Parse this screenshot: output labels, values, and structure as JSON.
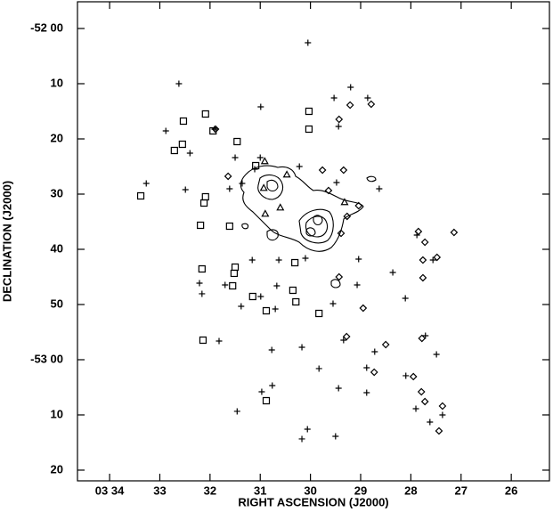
{
  "chart_data": {
    "type": "scatter",
    "xlabel": "RIGHT ASCENSION (J2000)",
    "ylabel": "DECLINATION (J2000)",
    "xlim": [
      34.64,
      25.24
    ],
    "ylim": [
      -4.84,
      81.94
    ],
    "y_inverted": true,
    "xticks": [
      {
        "value": 34,
        "label": "03 34"
      },
      33,
      32,
      31,
      30,
      29,
      28,
      27,
      26
    ],
    "yticks": [
      {
        "value": 0,
        "label": "-52 00"
      },
      10,
      20,
      30,
      40,
      50,
      {
        "value": 60,
        "label": "-53 00"
      },
      {
        "value": 70,
        "label": "10"
      },
      {
        "value": 80,
        "label": "20"
      }
    ],
    "series": [
      {
        "marker": "plus",
        "color": "#000000",
        "x": [
          30.05,
          32.62,
          30.99,
          29.53,
          29.2,
          28.86,
          29.44,
          32.88,
          32.4,
          31.91,
          31.5,
          31.0,
          31.11,
          31.36,
          31.61,
          33.27,
          32.49,
          30.22,
          29.48,
          28.63,
          31.16,
          30.63,
          30.1,
          29.04,
          28.36,
          27.56,
          28.11,
          32.21,
          31.7,
          30.99,
          30.67,
          32.16,
          31.38,
          31.82,
          30.7,
          29.55,
          29.07,
          30.17,
          29.34,
          28.72,
          28.88,
          28.1,
          30.77,
          29.83,
          30.97,
          30.76,
          29.44,
          28.88,
          27.49,
          27.71,
          27.9,
          27.62,
          27.37,
          31.46,
          30.06,
          30.17,
          29.5,
          27.88
        ],
        "values": [
          2.58,
          10.0,
          14.19,
          12.58,
          10.65,
          12.58,
          17.74,
          18.55,
          22.58,
          18.23,
          23.39,
          23.39,
          25.48,
          28.06,
          29.03,
          28.06,
          29.19,
          25.0,
          27.9,
          29.03,
          41.94,
          41.94,
          41.61,
          41.77,
          44.19,
          41.94,
          48.87,
          46.13,
          46.45,
          48.55,
          46.61,
          48.06,
          50.32,
          56.61,
          50.81,
          49.84,
          46.45,
          57.74,
          56.45,
          58.55,
          61.45,
          62.9,
          58.23,
          61.61,
          65.81,
          64.68,
          65.16,
          65.97,
          59.03,
          55.65,
          68.87,
          71.29,
          70.0,
          69.35,
          72.58,
          74.35,
          73.87,
          37.42
        ]
      },
      {
        "marker": "diamond",
        "color": "#000000",
        "x": [
          31.89,
          29.43,
          29.21,
          28.79,
          31.64,
          29.76,
          29.34,
          29.04,
          29.64,
          29.39,
          29.27,
          27.85,
          27.72,
          27.76,
          27.14,
          27.48,
          27.76,
          29.43,
          28.95,
          29.28,
          28.73,
          28.5,
          27.78,
          27.95,
          27.79,
          27.72,
          27.37,
          27.44
        ],
        "values": [
          18.23,
          16.45,
          13.87,
          13.71,
          26.77,
          25.65,
          25.65,
          32.1,
          29.35,
          37.1,
          34.03,
          36.77,
          38.71,
          41.94,
          36.94,
          41.45,
          45.16,
          45.0,
          50.65,
          55.81,
          62.26,
          57.26,
          56.13,
          63.06,
          65.81,
          67.58,
          68.39,
          72.9
        ]
      },
      {
        "marker": "square",
        "color": "#000000",
        "x": [
          33.38,
          32.71,
          32.53,
          32.09,
          31.94,
          32.55,
          30.03,
          30.03,
          31.46,
          32.09,
          32.12,
          32.19,
          32.16,
          31.09,
          31.5,
          31.52,
          31.55,
          31.15,
          30.88,
          30.35,
          30.29,
          30.31,
          29.83,
          30.88,
          32.14,
          31.61
        ],
        "values": [
          30.32,
          22.1,
          16.77,
          15.48,
          18.55,
          20.97,
          15.0,
          18.23,
          20.48,
          30.48,
          31.61,
          35.65,
          43.55,
          24.84,
          43.23,
          44.35,
          46.61,
          48.55,
          51.13,
          47.42,
          49.52,
          42.42,
          51.61,
          67.42,
          56.45,
          35.81
        ]
      },
      {
        "marker": "triangle",
        "color": "#000000",
        "x": [
          30.91,
          30.47,
          30.93,
          30.6,
          30.9,
          29.32
        ],
        "values": [
          24.03,
          26.45,
          28.87,
          32.42,
          33.55,
          31.45
        ]
      }
    ]
  }
}
